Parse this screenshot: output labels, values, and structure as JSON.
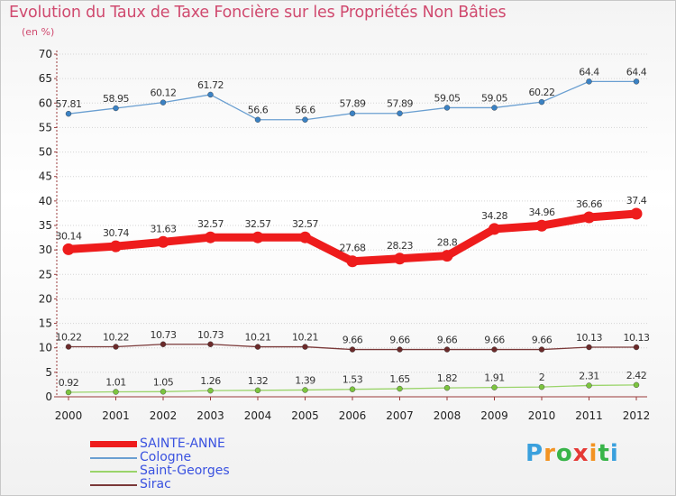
{
  "header": {
    "title": "Evolution du Taux de Taxe Foncière sur les Propriétés Non Bâties",
    "unit": "(en %)"
  },
  "brand": {
    "name": "Proxiti",
    "letter_colors": [
      "#3aa0dd",
      "#f39322",
      "#38b449",
      "#e53935",
      "#f39322",
      "#38b449",
      "#3aa0dd"
    ]
  },
  "chart_data": {
    "type": "line",
    "title": "Evolution du Taux de Taxe Foncière sur les Propriétés Non Bâties",
    "ylabel": "(en %)",
    "xlabel": "",
    "ylim": [
      0,
      70
    ],
    "yticks": [
      0,
      5,
      10,
      15,
      20,
      25,
      30,
      35,
      40,
      45,
      50,
      55,
      60,
      65,
      70
    ],
    "grid": true,
    "legend_position": "bottom-left",
    "x": [
      "2000",
      "2001",
      "2002",
      "2003",
      "2004",
      "2005",
      "2006",
      "2007",
      "2008",
      "2009",
      "2010",
      "2011",
      "2012"
    ],
    "series": [
      {
        "name": "Cologne",
        "color": "#6a9fd1",
        "marker": "#3b82c4",
        "values": [
          57.81,
          58.95,
          60.12,
          61.72,
          56.6,
          56.6,
          57.89,
          57.89,
          59.05,
          59.05,
          60.22,
          64.4,
          64.4
        ],
        "labels": [
          "57.81",
          "58.95",
          "60.12",
          "61.72",
          "56.6",
          "56.6",
          "57.89",
          "57.89",
          "59.05",
          "59.05",
          "60.22",
          "64.4",
          "64.4"
        ]
      },
      {
        "name": "SAINTE-ANNE",
        "color": "#ee1c1c",
        "marker": "#ee1c1c",
        "values": [
          30.14,
          30.74,
          31.63,
          32.57,
          32.57,
          32.57,
          27.68,
          28.23,
          28.8,
          34.28,
          34.96,
          36.66,
          37.4
        ],
        "labels": [
          "30.14",
          "30.74",
          "31.63",
          "32.57",
          "32.57",
          "32.57",
          "27.68",
          "28.23",
          "28.8",
          "34.28",
          "34.96",
          "36.66",
          "37.4"
        ]
      },
      {
        "name": "Sirac",
        "color": "#7a3838",
        "marker": "#6b2a2a",
        "values": [
          10.22,
          10.22,
          10.73,
          10.73,
          10.21,
          10.21,
          9.66,
          9.66,
          9.66,
          9.66,
          9.66,
          10.13,
          10.13
        ],
        "labels": [
          "10.22",
          "10.22",
          "10.73",
          "10.73",
          "10.21",
          "10.21",
          "9.66",
          "9.66",
          "9.66",
          "9.66",
          "9.66",
          "10.13",
          "10.13"
        ]
      },
      {
        "name": "Saint-Georges",
        "color": "#9ad46a",
        "marker": "#7cc43f",
        "values": [
          0.92,
          1.01,
          1.05,
          1.26,
          1.32,
          1.39,
          1.53,
          1.65,
          1.82,
          1.91,
          2,
          2.31,
          2.42
        ],
        "labels": [
          "0.92",
          "1.01",
          "1.05",
          "1.26",
          "1.32",
          "1.39",
          "1.53",
          "1.65",
          "1.82",
          "1.91",
          "2",
          "2.31",
          "2.42"
        ]
      }
    ],
    "legend": [
      {
        "name": "SAINTE-ANNE",
        "color": "#ee1c1c",
        "weight": "thick"
      },
      {
        "name": "Cologne",
        "color": "#6a9fd1",
        "weight": "thin"
      },
      {
        "name": "Saint-Georges",
        "color": "#9ad46a",
        "weight": "thin"
      },
      {
        "name": "Sirac",
        "color": "#7a3838",
        "weight": "thin"
      }
    ]
  }
}
